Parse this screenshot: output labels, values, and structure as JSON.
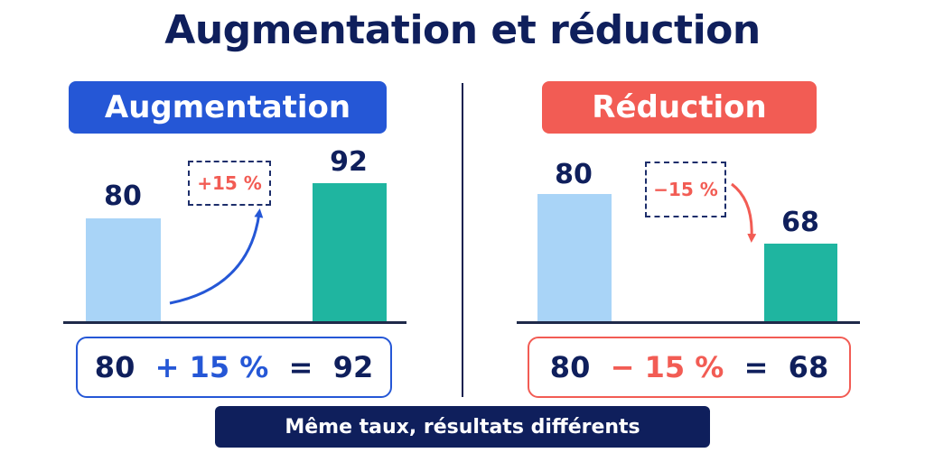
{
  "title": "Augmentation et réduction",
  "colors": {
    "navy": "#0f1f5c",
    "blue": "#2557d6",
    "red": "#f25c54",
    "light_bar": "#a9d4f7",
    "teal_bar": "#1fb5a0"
  },
  "increase": {
    "label": "Augmentation",
    "start_value": "80",
    "end_value": "92",
    "rate": "+15 %",
    "equation": {
      "a": "80",
      "op": "+ 15 %",
      "eq": "=",
      "result": "92"
    }
  },
  "decrease": {
    "label": "Réduction",
    "start_value": "80",
    "end_value": "68",
    "rate": "−15 %",
    "equation": {
      "a": "80",
      "op": "− 15 %",
      "eq": "=",
      "result": "68"
    }
  },
  "footer": "Même taux, résultats différents"
}
